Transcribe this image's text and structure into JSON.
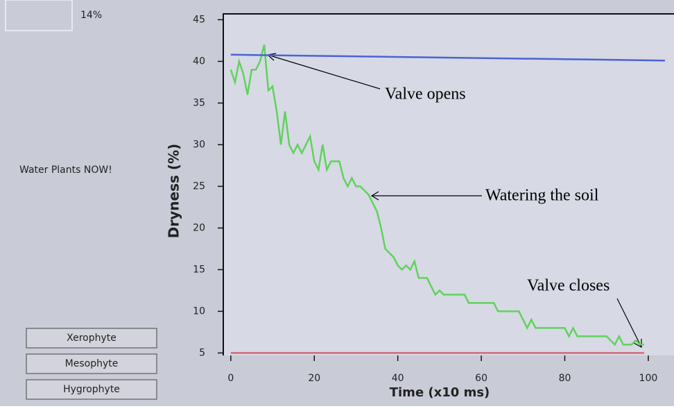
{
  "ui": {
    "status": "14%",
    "message": "Water Plants NOW!",
    "buttons": [
      "Xerophyte",
      "Mesophyte",
      "Hygrophyte"
    ]
  },
  "chart_data": {
    "type": "line",
    "x_label": "Time (x10 ms)",
    "y_label": "Dryness (%)",
    "xlim": [
      -1.8,
      104.5
    ],
    "ylim": [
      4.7,
      45.7
    ],
    "xticks": [
      0,
      20,
      40,
      60,
      80,
      100
    ],
    "yticks": [
      5,
      10,
      15,
      20,
      25,
      30,
      35,
      40,
      45
    ],
    "series": [
      {
        "color": "#5fd35a",
        "x": [
          0,
          1,
          2,
          3,
          4,
          5,
          6,
          7,
          8,
          9,
          10,
          11,
          12,
          13,
          14,
          15,
          16,
          17,
          18,
          19,
          20,
          21,
          22,
          23,
          24,
          25,
          26,
          27,
          28,
          29,
          30,
          31,
          32,
          33,
          34,
          35,
          36,
          37,
          38,
          39,
          40,
          41,
          42,
          43,
          44,
          45,
          46,
          47,
          48,
          49,
          50,
          51,
          52,
          53,
          54,
          55,
          56,
          57,
          58,
          59,
          60,
          61,
          62,
          63,
          64,
          65,
          66,
          67,
          68,
          69,
          70,
          71,
          72,
          73,
          74,
          75,
          76,
          77,
          78,
          79,
          80,
          81,
          82,
          83,
          84,
          85,
          86,
          87,
          88,
          89,
          90,
          91,
          92,
          93,
          94,
          95,
          96,
          97,
          98,
          99
        ],
        "values": [
          39,
          37.5,
          40,
          38.5,
          36,
          39,
          39,
          40,
          42,
          36.5,
          37,
          34,
          30,
          34,
          30,
          29,
          30,
          29,
          30,
          31,
          28,
          27,
          30,
          27,
          28,
          28,
          28,
          26,
          25,
          26,
          25,
          25,
          24.5,
          24,
          23,
          22,
          20,
          17.5,
          17,
          16.5,
          15.5,
          15,
          15.5,
          15,
          16,
          14,
          14,
          14,
          13,
          12,
          12.5,
          12,
          12,
          12,
          12,
          12,
          12,
          11,
          11,
          11,
          11,
          11,
          11,
          11,
          10,
          10,
          10,
          10,
          10,
          10,
          9,
          8,
          9,
          8,
          8,
          8,
          8,
          8,
          8,
          8,
          8,
          7,
          8,
          7,
          7,
          7,
          7,
          7,
          7,
          7,
          7,
          6.5,
          6,
          7,
          6,
          6,
          6,
          6.5,
          6,
          6
        ]
      },
      {
        "color": "#4b62d6",
        "x": [
          0,
          104
        ],
        "values": [
          40.8,
          40.1
        ]
      },
      {
        "color": "#d06a7a",
        "x": [
          0,
          99
        ],
        "values": [
          5,
          5
        ]
      }
    ],
    "annotations": [
      "Valve opens",
      "Watering the soil",
      "Valve closes"
    ]
  }
}
